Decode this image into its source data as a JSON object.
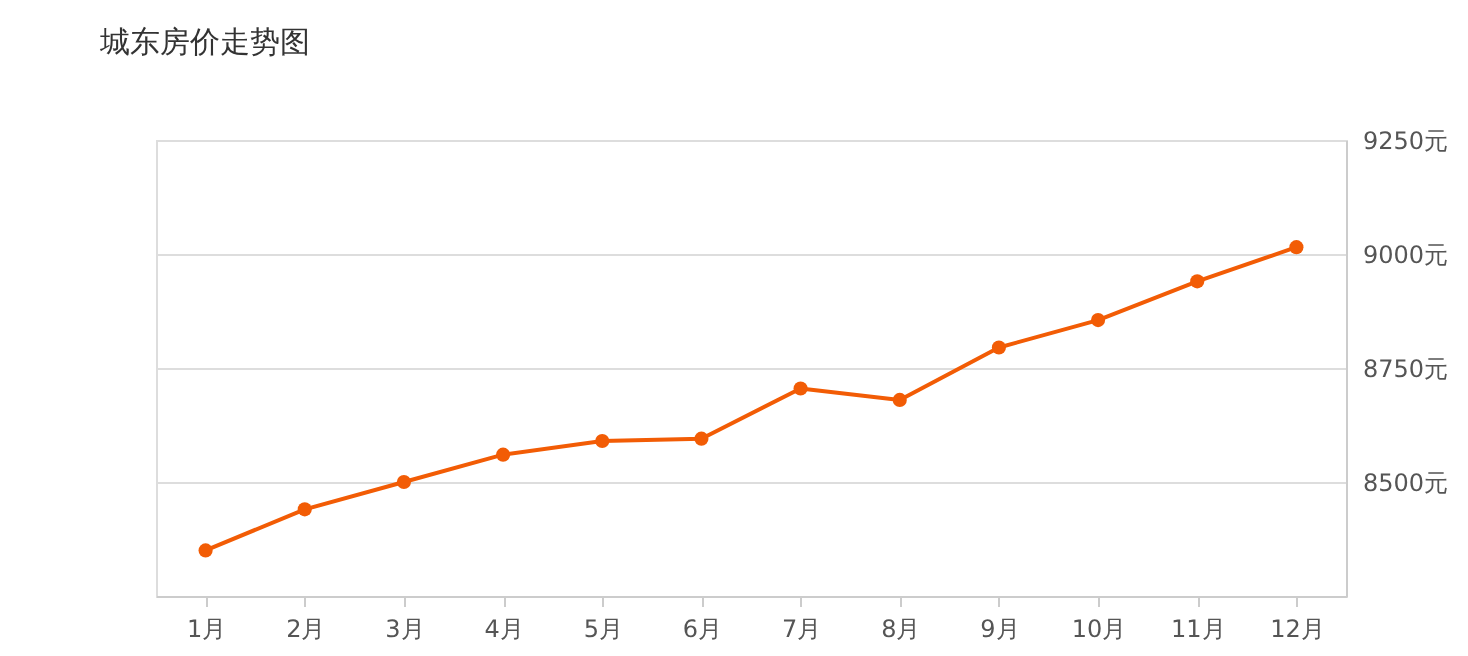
{
  "chart_data": {
    "type": "line",
    "title": "城东房价走势图",
    "categories": [
      "1月",
      "2月",
      "3月",
      "4月",
      "5月",
      "6月",
      "7月",
      "8月",
      "9月",
      "10月",
      "11月",
      "12月"
    ],
    "series": [
      {
        "color": "#f25c05",
        "values": [
          8350,
          8440,
          8500,
          8560,
          8590,
          8595,
          8705,
          8680,
          8795,
          8855,
          8940,
          9015
        ]
      }
    ],
    "ylim": [
      8250,
      9250
    ],
    "yticks": [
      {
        "value": 8500,
        "label": "8500元"
      },
      {
        "value": 8750,
        "label": "8750元"
      },
      {
        "value": 9000,
        "label": "9000元"
      },
      {
        "value": 9250,
        "label": "9250元"
      }
    ],
    "grid": "y",
    "marker": "circle",
    "line_style": "solid"
  }
}
